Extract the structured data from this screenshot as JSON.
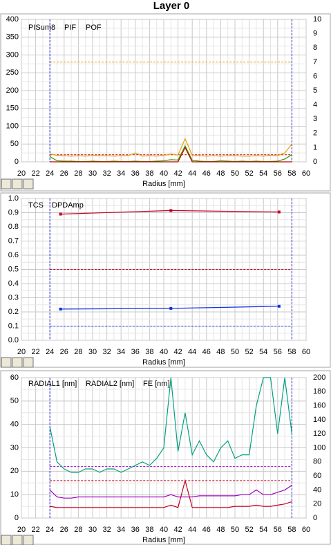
{
  "title": "Layer 0",
  "chart_data": [
    {
      "type": "line",
      "xlabel": "Radius [mm]",
      "x": [
        24,
        25,
        26,
        27,
        28,
        29,
        30,
        31,
        32,
        33,
        34,
        35,
        36,
        37,
        38,
        39,
        40,
        41,
        42,
        43,
        44,
        45,
        46,
        47,
        48,
        49,
        50,
        51,
        52,
        53,
        54,
        55,
        56,
        57,
        58
      ],
      "series": [
        {
          "name": "PISum8",
          "color": "#e8a000",
          "values": [
            22,
            18,
            17,
            16,
            17,
            16,
            18,
            17,
            17,
            16,
            17,
            17,
            25,
            16,
            17,
            16,
            18,
            22,
            19,
            65,
            18,
            17,
            16,
            17,
            16,
            17,
            17,
            16,
            16,
            17,
            16,
            18,
            17,
            25,
            50
          ]
        },
        {
          "name": "PIF",
          "color": "#30a000",
          "values": [
            15,
            3,
            2,
            2,
            1,
            1,
            2,
            1,
            1,
            2,
            1,
            1,
            2,
            1,
            1,
            2,
            3,
            6,
            5,
            45,
            4,
            2,
            1,
            1,
            3,
            2,
            1,
            2,
            1,
            2,
            1,
            1,
            2,
            8,
            20
          ]
        },
        {
          "name": "POF",
          "color": "#c00000",
          "values": [
            0,
            0,
            0,
            0,
            0,
            0,
            0,
            0,
            0,
            0,
            0,
            0,
            0,
            0,
            0,
            0,
            0,
            0,
            0,
            40,
            0,
            0,
            0,
            0,
            0,
            0,
            0,
            0,
            0,
            0,
            0,
            0,
            0,
            0,
            0
          ]
        }
      ],
      "reference_lines": [
        {
          "value": 280,
          "color": "#e8a000"
        },
        {
          "value": 20,
          "color": "#c00000"
        }
      ],
      "vlines": [
        24,
        58
      ],
      "vline_color": "#2020e0",
      "xlim": [
        20,
        60
      ],
      "xticks": [
        20,
        22,
        24,
        26,
        28,
        30,
        32,
        34,
        36,
        38,
        40,
        42,
        44,
        46,
        48,
        50,
        52,
        54,
        56,
        58,
        60
      ],
      "ylim": [
        0,
        400
      ],
      "yticks": [
        0,
        50,
        100,
        150,
        200,
        250,
        300,
        350,
        400
      ],
      "y2lim": [
        0,
        10
      ],
      "y2ticks": [
        0,
        1,
        2,
        3,
        4,
        5,
        6,
        7,
        8,
        9,
        10
      ],
      "grid": true,
      "markers": false
    },
    {
      "type": "line",
      "xlabel": "Radius [mm]",
      "x": [
        25.5,
        41,
        56.2
      ],
      "series": [
        {
          "name": "TCS",
          "color": "#1030e0",
          "values": [
            0.22,
            0.225,
            0.24
          ]
        },
        {
          "name": "DPDAmp",
          "color": "#c00020",
          "values": [
            0.89,
            0.915,
            0.905
          ]
        }
      ],
      "reference_lines": [
        {
          "value": 0.5,
          "color": "#c00020"
        },
        {
          "value": 0.1,
          "color": "#1030e0"
        }
      ],
      "vlines": [
        24,
        58
      ],
      "vline_color": "#2020e0",
      "xlim": [
        20,
        60
      ],
      "xticks": [
        20,
        22,
        24,
        26,
        28,
        30,
        32,
        34,
        36,
        38,
        40,
        42,
        44,
        46,
        48,
        50,
        52,
        54,
        56,
        58,
        60
      ],
      "ylim": [
        0,
        1
      ],
      "yticks": [
        {
          "value": 0,
          "label": "0.0"
        },
        0.1,
        0.2,
        0.3,
        0.4,
        0.5,
        0.6,
        0.7,
        0.8,
        0.9,
        {
          "value": 1,
          "label": "1.0"
        }
      ],
      "grid": true,
      "markers": true
    },
    {
      "type": "line",
      "xlabel": "Radius [mm]",
      "x": [
        24,
        25,
        26,
        27,
        28,
        29,
        30,
        31,
        32,
        33,
        34,
        35,
        36,
        37,
        38,
        39,
        40,
        41,
        42,
        43,
        44,
        45,
        46,
        47,
        48,
        49,
        50,
        51,
        52,
        53,
        54,
        55,
        56,
        57,
        58
      ],
      "series": [
        {
          "name": "RADIAL1 [nm]",
          "color": "#a000c0",
          "values": [
            12,
            9,
            8.5,
            8.5,
            9,
            9,
            9,
            9,
            9,
            9,
            9,
            9,
            9,
            9,
            9,
            9,
            9,
            10,
            9,
            9,
            9,
            9.5,
            9.5,
            9.5,
            9.5,
            9.5,
            9.5,
            10,
            10,
            12,
            10,
            10,
            11,
            12,
            14
          ]
        },
        {
          "name": "RADIAL2 [nm]",
          "color": "#c00020",
          "values": [
            5,
            4.5,
            4.5,
            4.5,
            4.5,
            4.5,
            4.5,
            4.5,
            4.5,
            4.5,
            4.5,
            4.5,
            4.5,
            4.5,
            4.5,
            4.5,
            4.5,
            5.5,
            4.5,
            16,
            4.5,
            4.5,
            4.5,
            4.5,
            4.5,
            4.5,
            5,
            5,
            5,
            5.5,
            5,
            5,
            5.5,
            6,
            7
          ]
        },
        {
          "name": "FE [nm]",
          "color": "#00a080",
          "axis": "y2",
          "values": [
            130,
            80,
            70,
            65,
            65,
            70,
            70,
            65,
            70,
            70,
            65,
            70,
            75,
            80,
            75,
            85,
            100,
            200,
            95,
            150,
            90,
            110,
            90,
            80,
            100,
            110,
            85,
            90,
            90,
            160,
            200,
            200,
            120,
            200,
            120
          ]
        }
      ],
      "reference_lines": [
        {
          "value": 22,
          "color": "#a000c0"
        },
        {
          "value": 16,
          "color": "#c00020"
        }
      ],
      "vlines": [
        24,
        58
      ],
      "vline_color": "#2020e0",
      "xlim": [
        20,
        60
      ],
      "xticks": [
        20,
        22,
        24,
        26,
        28,
        30,
        32,
        34,
        36,
        38,
        40,
        42,
        44,
        46,
        48,
        50,
        52,
        54,
        56,
        58,
        60
      ],
      "ylim": [
        0,
        60
      ],
      "yticks": [
        0,
        10,
        20,
        30,
        40,
        50,
        60
      ],
      "y2lim": [
        0,
        200
      ],
      "y2ticks": [
        0,
        20,
        40,
        60,
        80,
        100,
        120,
        140,
        160,
        180,
        200
      ],
      "grid": true,
      "markers": false
    }
  ]
}
